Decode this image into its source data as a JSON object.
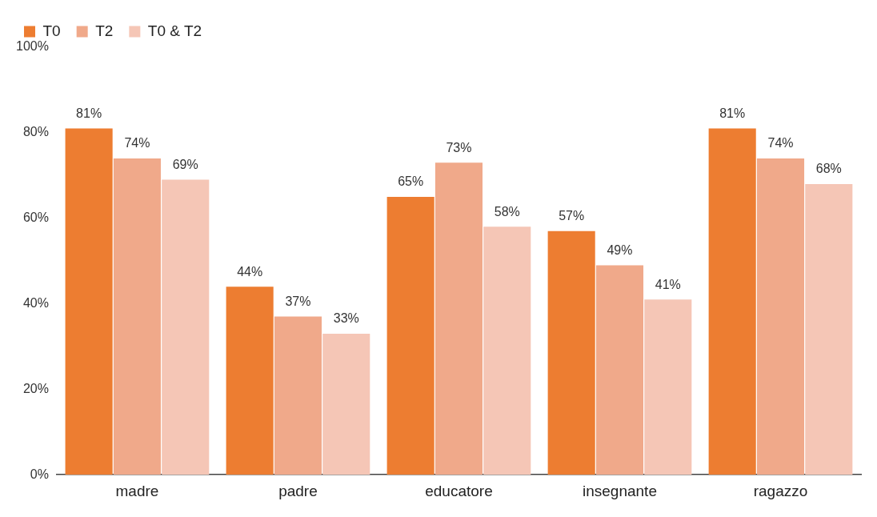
{
  "chart_data": {
    "type": "bar",
    "categories": [
      "madre",
      "padre",
      "educatore",
      "insegnante",
      "ragazzo"
    ],
    "series": [
      {
        "name": "T0",
        "color": "#ed7d31",
        "values": [
          81,
          44,
          65,
          57,
          81
        ],
        "value_labels": [
          "81%",
          "44%",
          "65%",
          "57%",
          "81%"
        ]
      },
      {
        "name": "T2",
        "color": "#f0a98a",
        "values": [
          74,
          37,
          73,
          49,
          74
        ],
        "value_labels": [
          "74%",
          "37%",
          "73%",
          "49%",
          "74%"
        ]
      },
      {
        "name": "T0 & T2",
        "color": "#f5c6b6",
        "values": [
          69,
          33,
          58,
          41,
          68
        ],
        "value_labels": [
          "69%",
          "33%",
          "58%",
          "41%",
          "68%"
        ]
      }
    ],
    "ylim": [
      0,
      100
    ],
    "yticks": [
      {
        "value": 0,
        "label": "0%"
      },
      {
        "value": 20,
        "label": "20%"
      },
      {
        "value": 40,
        "label": "40%"
      },
      {
        "value": 60,
        "label": "60%"
      },
      {
        "value": 80,
        "label": "80%"
      },
      {
        "value": 100,
        "label": "100%"
      }
    ],
    "grid": false,
    "legend": "top left"
  }
}
